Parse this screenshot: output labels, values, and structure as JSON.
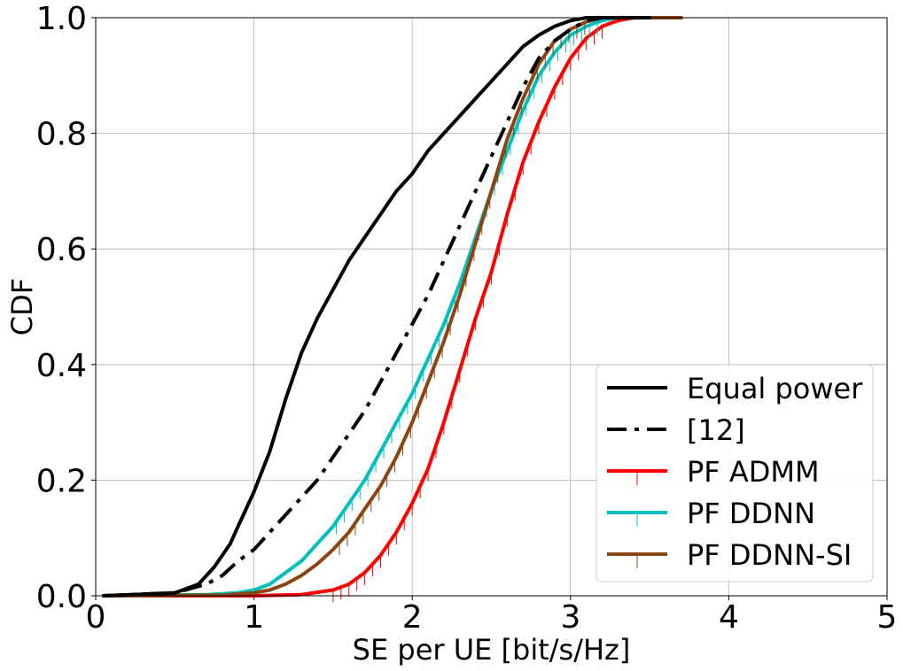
{
  "chart_data": {
    "type": "line",
    "title": "",
    "xlabel": "SE per UE [bit/s/Hz]",
    "ylabel": "CDF",
    "xlim": [
      0,
      5
    ],
    "ylim": [
      0,
      1
    ],
    "xticks": [
      0,
      1,
      2,
      3,
      4,
      5
    ],
    "yticks": [
      0.0,
      0.2,
      0.4,
      0.6,
      0.8,
      1.0
    ],
    "xtick_labels": [
      "0",
      "1",
      "2",
      "3",
      "4",
      "5"
    ],
    "ytick_labels": [
      "0.0",
      "0.2",
      "0.4",
      "0.6",
      "0.8",
      "1.0"
    ],
    "grid": true,
    "legend_position": "bottom-right",
    "series": [
      {
        "name": "Equal power",
        "color": "#000000",
        "style": "solid",
        "x": [
          0.05,
          0.5,
          0.65,
          0.75,
          0.8,
          0.85,
          0.9,
          0.95,
          1.0,
          1.1,
          1.2,
          1.3,
          1.4,
          1.5,
          1.6,
          1.7,
          1.8,
          1.9,
          2.0,
          2.1,
          2.2,
          2.3,
          2.4,
          2.5,
          2.6,
          2.7,
          2.8,
          2.9,
          3.0,
          3.1,
          3.3,
          3.5
        ],
        "y": [
          0.0,
          0.005,
          0.02,
          0.05,
          0.07,
          0.09,
          0.12,
          0.15,
          0.18,
          0.25,
          0.34,
          0.42,
          0.48,
          0.53,
          0.58,
          0.62,
          0.66,
          0.7,
          0.73,
          0.77,
          0.8,
          0.83,
          0.86,
          0.89,
          0.92,
          0.95,
          0.97,
          0.985,
          0.995,
          1.0,
          1.0,
          1.0
        ]
      },
      {
        "name": "[12]",
        "color": "#000000",
        "style": "dashdot",
        "x": [
          0.05,
          0.5,
          0.7,
          0.8,
          0.9,
          1.0,
          1.1,
          1.2,
          1.3,
          1.4,
          1.5,
          1.6,
          1.7,
          1.8,
          1.9,
          2.0,
          2.1,
          2.2,
          2.3,
          2.4,
          2.5,
          2.6,
          2.7,
          2.8,
          2.9,
          3.0,
          3.1,
          3.2,
          3.3,
          3.4
        ],
        "y": [
          0.0,
          0.005,
          0.02,
          0.035,
          0.06,
          0.08,
          0.11,
          0.14,
          0.17,
          0.2,
          0.24,
          0.28,
          0.32,
          0.37,
          0.42,
          0.47,
          0.52,
          0.58,
          0.64,
          0.7,
          0.76,
          0.82,
          0.88,
          0.93,
          0.96,
          0.98,
          0.995,
          1.0,
          1.0,
          1.0
        ]
      },
      {
        "name": "PF ADMM",
        "color": "#ff0000",
        "style": "solid",
        "x": [
          0.05,
          1.0,
          1.3,
          1.5,
          1.6,
          1.7,
          1.8,
          1.9,
          2.0,
          2.1,
          2.2,
          2.3,
          2.4,
          2.5,
          2.6,
          2.7,
          2.8,
          2.9,
          3.0,
          3.1,
          3.2,
          3.3,
          3.4,
          3.5
        ],
        "y": [
          0.0,
          0.0,
          0.002,
          0.01,
          0.02,
          0.04,
          0.07,
          0.11,
          0.16,
          0.22,
          0.3,
          0.39,
          0.48,
          0.56,
          0.66,
          0.75,
          0.82,
          0.88,
          0.93,
          0.965,
          0.985,
          0.995,
          1.0,
          1.0
        ]
      },
      {
        "name": "PF DDNN",
        "color": "#00bfbf",
        "style": "solid",
        "x": [
          0.05,
          0.7,
          0.9,
          1.0,
          1.1,
          1.2,
          1.3,
          1.4,
          1.5,
          1.6,
          1.7,
          1.8,
          1.9,
          2.0,
          2.1,
          2.2,
          2.3,
          2.4,
          2.5,
          2.6,
          2.7,
          2.8,
          2.9,
          3.0,
          3.1,
          3.2,
          3.3,
          3.4
        ],
        "y": [
          0.0,
          0.002,
          0.005,
          0.01,
          0.02,
          0.04,
          0.06,
          0.09,
          0.12,
          0.16,
          0.2,
          0.25,
          0.3,
          0.35,
          0.41,
          0.47,
          0.54,
          0.62,
          0.7,
          0.77,
          0.84,
          0.9,
          0.94,
          0.97,
          0.985,
          0.995,
          1.0,
          1.0
        ]
      },
      {
        "name": "PF DDNN-SI",
        "color": "#8b4513",
        "style": "solid",
        "x": [
          0.05,
          0.8,
          1.0,
          1.1,
          1.2,
          1.3,
          1.4,
          1.5,
          1.6,
          1.7,
          1.8,
          1.9,
          2.0,
          2.1,
          2.2,
          2.3,
          2.4,
          2.5,
          2.6,
          2.7,
          2.8,
          2.9,
          3.0,
          3.1,
          3.2,
          3.3,
          3.4,
          3.7
        ],
        "y": [
          0.0,
          0.001,
          0.005,
          0.01,
          0.02,
          0.035,
          0.055,
          0.08,
          0.11,
          0.15,
          0.19,
          0.24,
          0.3,
          0.37,
          0.44,
          0.52,
          0.61,
          0.7,
          0.79,
          0.86,
          0.92,
          0.96,
          0.98,
          0.993,
          1.0,
          1.0,
          1.0,
          1.0
        ]
      }
    ]
  }
}
